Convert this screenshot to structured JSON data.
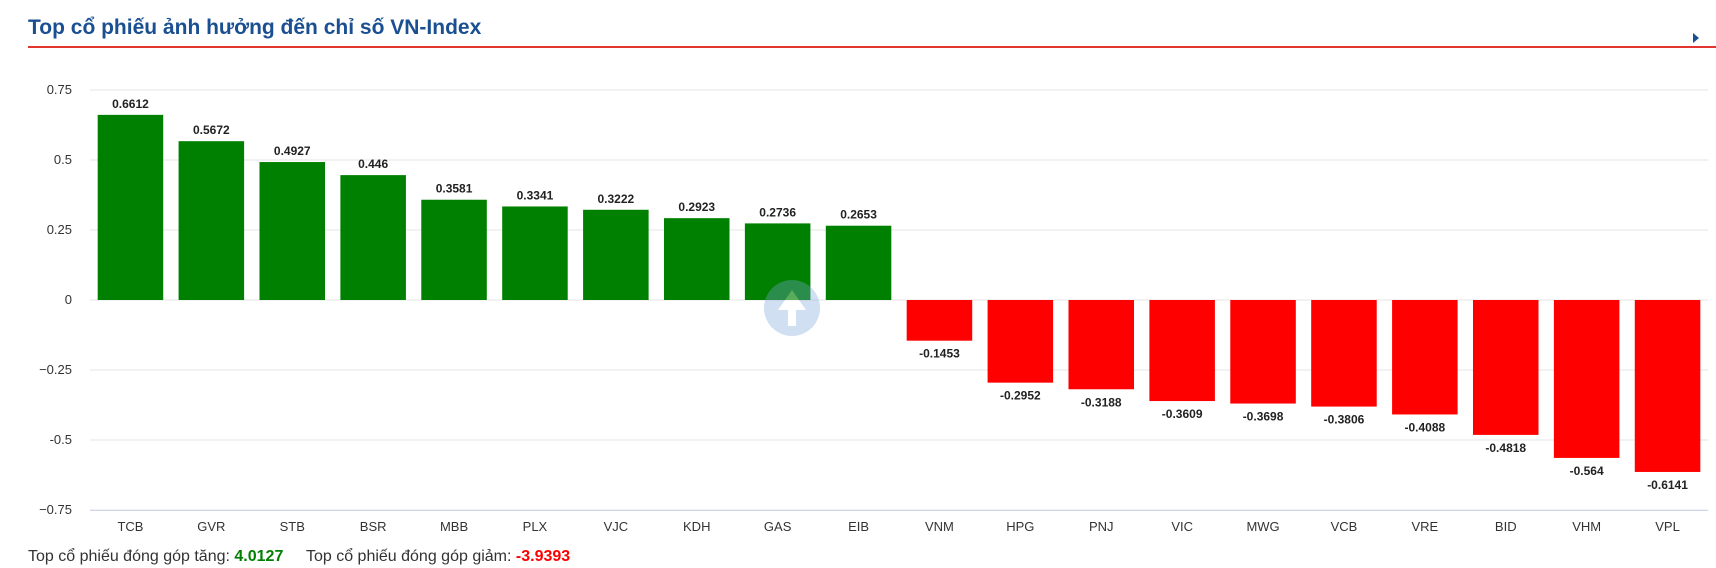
{
  "header": {
    "title": "Top cổ phiếu ảnh hưởng đến chỉ số VN-Index"
  },
  "footer": {
    "up_label": "Top cổ phiếu đóng góp tăng:",
    "up_value": "4.0127",
    "down_label": "Top cổ phiếu đóng góp giảm:",
    "down_value": "-3.9393"
  },
  "colors": {
    "positive": "#008000",
    "negative": "#ff0000",
    "title": "#1a4f91",
    "accent_line": "#e3342f"
  },
  "chart_data": {
    "type": "bar",
    "title": "",
    "xlabel": "",
    "ylabel": "",
    "ylim": [
      -0.75,
      0.75
    ],
    "yticks": [
      0.75,
      0.5,
      0.25,
      0,
      -0.25,
      -0.5,
      -0.75
    ],
    "ytick_labels": [
      "0.75",
      "0.5",
      "0.25",
      "0",
      "−0.25",
      "-0.5",
      "−0.75"
    ],
    "grid": true,
    "legend": "none",
    "categories": [
      "TCB",
      "GVR",
      "STB",
      "BSR",
      "MBB",
      "PLX",
      "VJC",
      "KDH",
      "GAS",
      "EIB",
      "VNM",
      "HPG",
      "PNJ",
      "VIC",
      "MWG",
      "VCB",
      "VRE",
      "BID",
      "VHM",
      "VPL"
    ],
    "values": [
      0.6612,
      0.5672,
      0.4927,
      0.446,
      0.3581,
      0.3341,
      0.3222,
      0.2923,
      0.2736,
      0.2653,
      -0.1453,
      -0.2952,
      -0.3188,
      -0.3609,
      -0.3698,
      -0.3806,
      -0.4088,
      -0.4818,
      -0.564,
      -0.6141
    ],
    "labels": [
      "0.6612",
      "0.5672",
      "0.4927",
      "0.446",
      "0.3581",
      "0.3341",
      "0.3222",
      "0.2923",
      "0.2736",
      "0.2653",
      "-0.1453",
      "-0.2952",
      "-0.3188",
      "-0.3609",
      "-0.3698",
      "-0.3806",
      "-0.4088",
      "-0.4818",
      "-0.564",
      "-0.6141"
    ]
  }
}
